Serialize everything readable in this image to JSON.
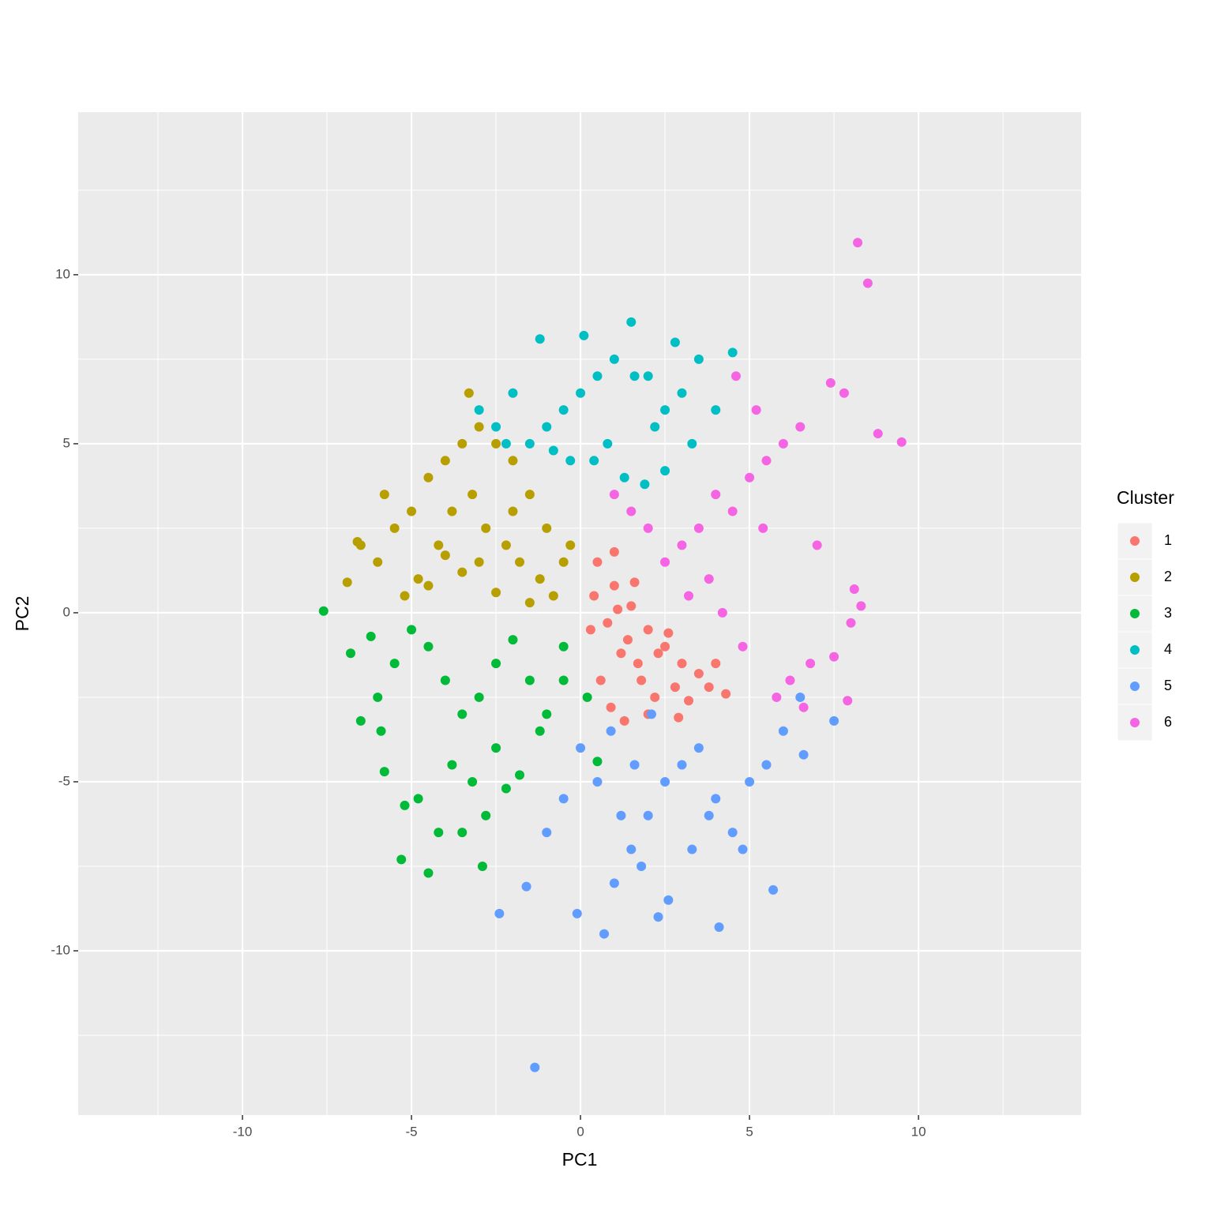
{
  "chart_data": {
    "type": "scatter",
    "x_label": "PC1",
    "y_label": "PC2",
    "legend_title": "Cluster",
    "legend_position": "right",
    "grid": true,
    "xlim": [
      -14.86,
      14.81
    ],
    "ylim": [
      -14.86,
      14.81
    ],
    "xticks": [
      -10,
      -5,
      0,
      5,
      10
    ],
    "yticks": [
      -10,
      -5,
      0,
      5,
      10
    ],
    "x_minor_ticks": [
      -12.5,
      -7.5,
      -2.5,
      2.5,
      7.5,
      12.5
    ],
    "y_minor_ticks": [
      -12.5,
      -7.5,
      -2.5,
      2.5,
      7.5,
      12.5
    ],
    "series": [
      {
        "name": "1",
        "color": "#F8766D",
        "x": [
          0.5,
          1.0,
          1.5,
          2.0,
          2.5,
          3.0,
          0.8,
          1.2,
          1.8,
          2.2,
          2.8,
          3.5,
          4.0,
          0.3,
          0.6,
          1.4,
          2.6,
          3.2,
          1.0,
          1.7,
          2.3,
          0.9,
          1.3,
          2.0,
          3.8,
          4.3,
          0.4,
          1.1,
          2.9,
          1.6
        ],
        "y": [
          1.5,
          0.8,
          0.2,
          -0.5,
          -1.0,
          -1.5,
          -0.3,
          -1.2,
          -2.0,
          -2.5,
          -2.2,
          -1.8,
          -1.5,
          -0.5,
          -2.0,
          -0.8,
          -0.6,
          -2.6,
          1.8,
          -1.5,
          -1.2,
          -2.8,
          -3.2,
          -3.0,
          -2.2,
          -2.4,
          0.5,
          0.1,
          -3.1,
          0.9
        ]
      },
      {
        "name": "2",
        "color": "#B79F00",
        "x": [
          -5,
          -4.5,
          -4,
          -3.5,
          -3,
          -2.5,
          -2,
          -1.5,
          -1,
          -0.5,
          -5.5,
          -6,
          -6.5,
          -4.8,
          -4.2,
          -3.8,
          -3.2,
          -2.8,
          -2.2,
          -1.8,
          -1.2,
          -0.8,
          -5.2,
          -4.5,
          -3.5,
          -2.5,
          -1.5,
          -3.3,
          -6.9,
          -6.6,
          -5.8,
          -4.0,
          -2.0,
          -0.3,
          -3.0
        ],
        "y": [
          3.0,
          4.0,
          4.5,
          5.0,
          5.5,
          5.0,
          4.5,
          3.5,
          2.5,
          1.5,
          2.5,
          1.5,
          2.0,
          1.0,
          2.0,
          3.0,
          3.5,
          2.5,
          2.0,
          1.5,
          1.0,
          0.5,
          0.5,
          0.8,
          1.2,
          0.6,
          0.3,
          6.5,
          0.9,
          2.1,
          3.5,
          1.7,
          3.0,
          2.0,
          1.5
        ]
      },
      {
        "name": "3",
        "color": "#00BA38",
        "x": [
          -7.6,
          -6.8,
          -6.5,
          -6,
          -5.5,
          -5,
          -4.5,
          -4,
          -3.5,
          -3,
          -2.5,
          -2,
          -1.5,
          -1,
          -0.5,
          0.2,
          -5.8,
          -5.2,
          -4.8,
          -4.2,
          -3.8,
          -3.2,
          -2.8,
          -2.2,
          -1.8,
          -1.2,
          -5.3,
          -4.5,
          -3.5,
          -2.9,
          -2.5,
          -6.2,
          -0.5,
          0.5,
          -5.9
        ],
        "y": [
          0.05,
          -1.2,
          -3.2,
          -2.5,
          -1.5,
          -0.5,
          -1.0,
          -2.0,
          -3.0,
          -2.5,
          -1.5,
          -0.8,
          -2.0,
          -3.0,
          -2.0,
          -2.5,
          -4.7,
          -5.7,
          -5.5,
          -6.5,
          -4.5,
          -5.0,
          -6.0,
          -5.2,
          -4.8,
          -3.5,
          -7.3,
          -7.7,
          -6.5,
          -7.5,
          -4.0,
          -0.7,
          -1.0,
          -4.4,
          -3.5
        ]
      },
      {
        "name": "4",
        "color": "#00BFC4",
        "x": [
          -3,
          -2.5,
          -2,
          -1.5,
          -1,
          -0.5,
          0,
          0.5,
          1,
          1.5,
          2,
          2.5,
          3,
          3.5,
          4,
          -1.2,
          0.1,
          1.6,
          2.8,
          4.5,
          -0.3,
          0.8,
          1.3,
          2.2,
          3.3,
          -2.2,
          -0.8,
          0.4,
          1.9,
          2.5
        ],
        "y": [
          6.0,
          5.5,
          6.5,
          5.0,
          5.5,
          6.0,
          6.5,
          7.0,
          7.5,
          8.6,
          7.0,
          6.0,
          6.5,
          7.5,
          6.0,
          8.1,
          8.2,
          7.0,
          8.0,
          7.7,
          4.5,
          5.0,
          4.0,
          5.5,
          5.0,
          5.0,
          4.8,
          4.5,
          3.8,
          4.2
        ]
      },
      {
        "name": "5",
        "color": "#619CFF",
        "x": [
          -1.35,
          -2.4,
          -1.6,
          -0.1,
          0.7,
          1,
          1.5,
          2,
          2.5,
          3,
          3.5,
          4,
          4.5,
          5,
          5.5,
          6,
          6.5,
          7.5,
          5.7,
          2.3,
          4.1,
          0,
          0.5,
          1.2,
          1.8,
          2.6,
          3.3,
          3.8,
          4.8,
          6.6,
          0.9,
          2.1,
          -1,
          -0.5,
          1.6
        ],
        "y": [
          -13.45,
          -8.9,
          -8.1,
          -8.9,
          -9.5,
          -8.0,
          -7.0,
          -6.0,
          -5.0,
          -4.5,
          -4.0,
          -5.5,
          -6.5,
          -5.0,
          -4.5,
          -3.5,
          -2.5,
          -3.2,
          -8.2,
          -9.0,
          -9.3,
          -4.0,
          -5.0,
          -6.0,
          -7.5,
          -8.5,
          -7.0,
          -6.0,
          -7.0,
          -4.2,
          -3.5,
          -3.0,
          -6.5,
          -5.5,
          -4.5
        ]
      },
      {
        "name": "6",
        "color": "#F564E3",
        "x": [
          8.2,
          8.5,
          9.5,
          8.8,
          7.8,
          7.4,
          6.5,
          6,
          5.5,
          5,
          4.5,
          4,
          3.5,
          3,
          2.5,
          2,
          1.5,
          1,
          7,
          7.5,
          8,
          8.3,
          8.1,
          6.8,
          6.2,
          5.8,
          4.8,
          4.2,
          3.8,
          3.2,
          5.2,
          4.6,
          6.6,
          7.9,
          5.4
        ],
        "y": [
          10.95,
          9.75,
          5.05,
          5.3,
          6.5,
          6.8,
          5.5,
          5.0,
          4.5,
          4.0,
          3.0,
          3.5,
          2.5,
          2.0,
          1.5,
          2.5,
          3.0,
          3.5,
          2.0,
          -1.3,
          -0.3,
          0.2,
          0.7,
          -1.5,
          -2.0,
          -2.5,
          -1.0,
          0.0,
          1.0,
          0.5,
          6.0,
          7.0,
          -2.8,
          -2.6,
          2.5
        ]
      }
    ]
  }
}
